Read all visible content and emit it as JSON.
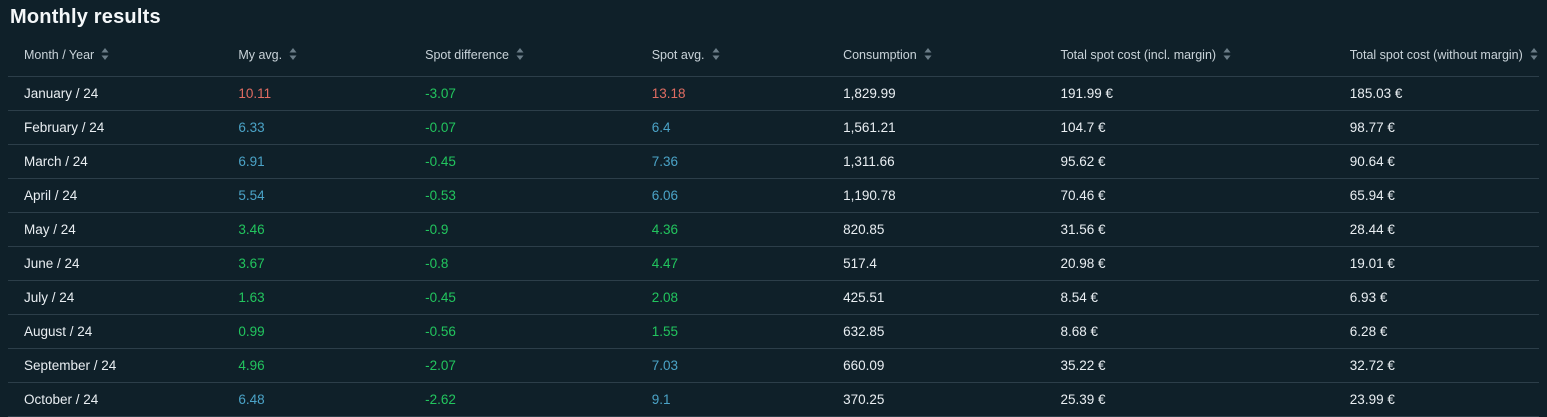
{
  "title": "Monthly results",
  "colors": {
    "bg": "#0f2029",
    "line": "#2c3e49",
    "title": "#f4f7f9",
    "header": "#c9d3d9",
    "text": "#e9eef2",
    "red": "#e06c62",
    "green": "#22c55e",
    "blue": "#4ba3c7",
    "icon": "#6b7d88"
  },
  "table": {
    "columns": [
      {
        "key": "month-year",
        "label": "Month / Year"
      },
      {
        "key": "my-avg",
        "label": "My avg."
      },
      {
        "key": "spot-difference",
        "label": "Spot difference"
      },
      {
        "key": "spot-avg",
        "label": "Spot avg."
      },
      {
        "key": "consumption",
        "label": "Consumption"
      },
      {
        "key": "total-spot-cost-incl-margin",
        "label": "Total spot cost (incl. margin)"
      },
      {
        "key": "total-spot-cost-without-margin",
        "label": "Total spot cost (without margin)"
      }
    ],
    "rows": [
      {
        "cells": [
          {
            "v": "January / 24",
            "c": "default"
          },
          {
            "v": "10.11",
            "c": "red"
          },
          {
            "v": "-3.07",
            "c": "green"
          },
          {
            "v": "13.18",
            "c": "red"
          },
          {
            "v": "1,829.99",
            "c": "default"
          },
          {
            "v": "191.99 €",
            "c": "default"
          },
          {
            "v": "185.03 €",
            "c": "default"
          }
        ]
      },
      {
        "cells": [
          {
            "v": "February / 24",
            "c": "default"
          },
          {
            "v": "6.33",
            "c": "blue"
          },
          {
            "v": "-0.07",
            "c": "green"
          },
          {
            "v": "6.4",
            "c": "blue"
          },
          {
            "v": "1,561.21",
            "c": "default"
          },
          {
            "v": "104.7 €",
            "c": "default"
          },
          {
            "v": "98.77 €",
            "c": "default"
          }
        ]
      },
      {
        "cells": [
          {
            "v": "March / 24",
            "c": "default"
          },
          {
            "v": "6.91",
            "c": "blue"
          },
          {
            "v": "-0.45",
            "c": "green"
          },
          {
            "v": "7.36",
            "c": "blue"
          },
          {
            "v": "1,311.66",
            "c": "default"
          },
          {
            "v": "95.62 €",
            "c": "default"
          },
          {
            "v": "90.64 €",
            "c": "default"
          }
        ]
      },
      {
        "cells": [
          {
            "v": "April / 24",
            "c": "default"
          },
          {
            "v": "5.54",
            "c": "blue"
          },
          {
            "v": "-0.53",
            "c": "green"
          },
          {
            "v": "6.06",
            "c": "blue"
          },
          {
            "v": "1,190.78",
            "c": "default"
          },
          {
            "v": "70.46 €",
            "c": "default"
          },
          {
            "v": "65.94 €",
            "c": "default"
          }
        ]
      },
      {
        "cells": [
          {
            "v": "May / 24",
            "c": "default"
          },
          {
            "v": "3.46",
            "c": "green"
          },
          {
            "v": "-0.9",
            "c": "green"
          },
          {
            "v": "4.36",
            "c": "green"
          },
          {
            "v": "820.85",
            "c": "default"
          },
          {
            "v": "31.56 €",
            "c": "default"
          },
          {
            "v": "28.44 €",
            "c": "default"
          }
        ]
      },
      {
        "cells": [
          {
            "v": "June / 24",
            "c": "default"
          },
          {
            "v": "3.67",
            "c": "green"
          },
          {
            "v": "-0.8",
            "c": "green"
          },
          {
            "v": "4.47",
            "c": "green"
          },
          {
            "v": "517.4",
            "c": "default"
          },
          {
            "v": "20.98 €",
            "c": "default"
          },
          {
            "v": "19.01 €",
            "c": "default"
          }
        ]
      },
      {
        "cells": [
          {
            "v": "July / 24",
            "c": "default"
          },
          {
            "v": "1.63",
            "c": "green"
          },
          {
            "v": "-0.45",
            "c": "green"
          },
          {
            "v": "2.08",
            "c": "green"
          },
          {
            "v": "425.51",
            "c": "default"
          },
          {
            "v": "8.54 €",
            "c": "default"
          },
          {
            "v": "6.93 €",
            "c": "default"
          }
        ]
      },
      {
        "cells": [
          {
            "v": "August / 24",
            "c": "default"
          },
          {
            "v": "0.99",
            "c": "green"
          },
          {
            "v": "-0.56",
            "c": "green"
          },
          {
            "v": "1.55",
            "c": "green"
          },
          {
            "v": "632.85",
            "c": "default"
          },
          {
            "v": "8.68 €",
            "c": "default"
          },
          {
            "v": "6.28 €",
            "c": "default"
          }
        ]
      },
      {
        "cells": [
          {
            "v": "September / 24",
            "c": "default"
          },
          {
            "v": "4.96",
            "c": "green"
          },
          {
            "v": "-2.07",
            "c": "green"
          },
          {
            "v": "7.03",
            "c": "blue"
          },
          {
            "v": "660.09",
            "c": "default"
          },
          {
            "v": "35.22 €",
            "c": "default"
          },
          {
            "v": "32.72 €",
            "c": "default"
          }
        ]
      },
      {
        "cells": [
          {
            "v": "October / 24",
            "c": "default"
          },
          {
            "v": "6.48",
            "c": "blue"
          },
          {
            "v": "-2.62",
            "c": "green"
          },
          {
            "v": "9.1",
            "c": "blue"
          },
          {
            "v": "370.25",
            "c": "default"
          },
          {
            "v": "25.39 €",
            "c": "default"
          },
          {
            "v": "23.99 €",
            "c": "default"
          }
        ]
      }
    ]
  }
}
